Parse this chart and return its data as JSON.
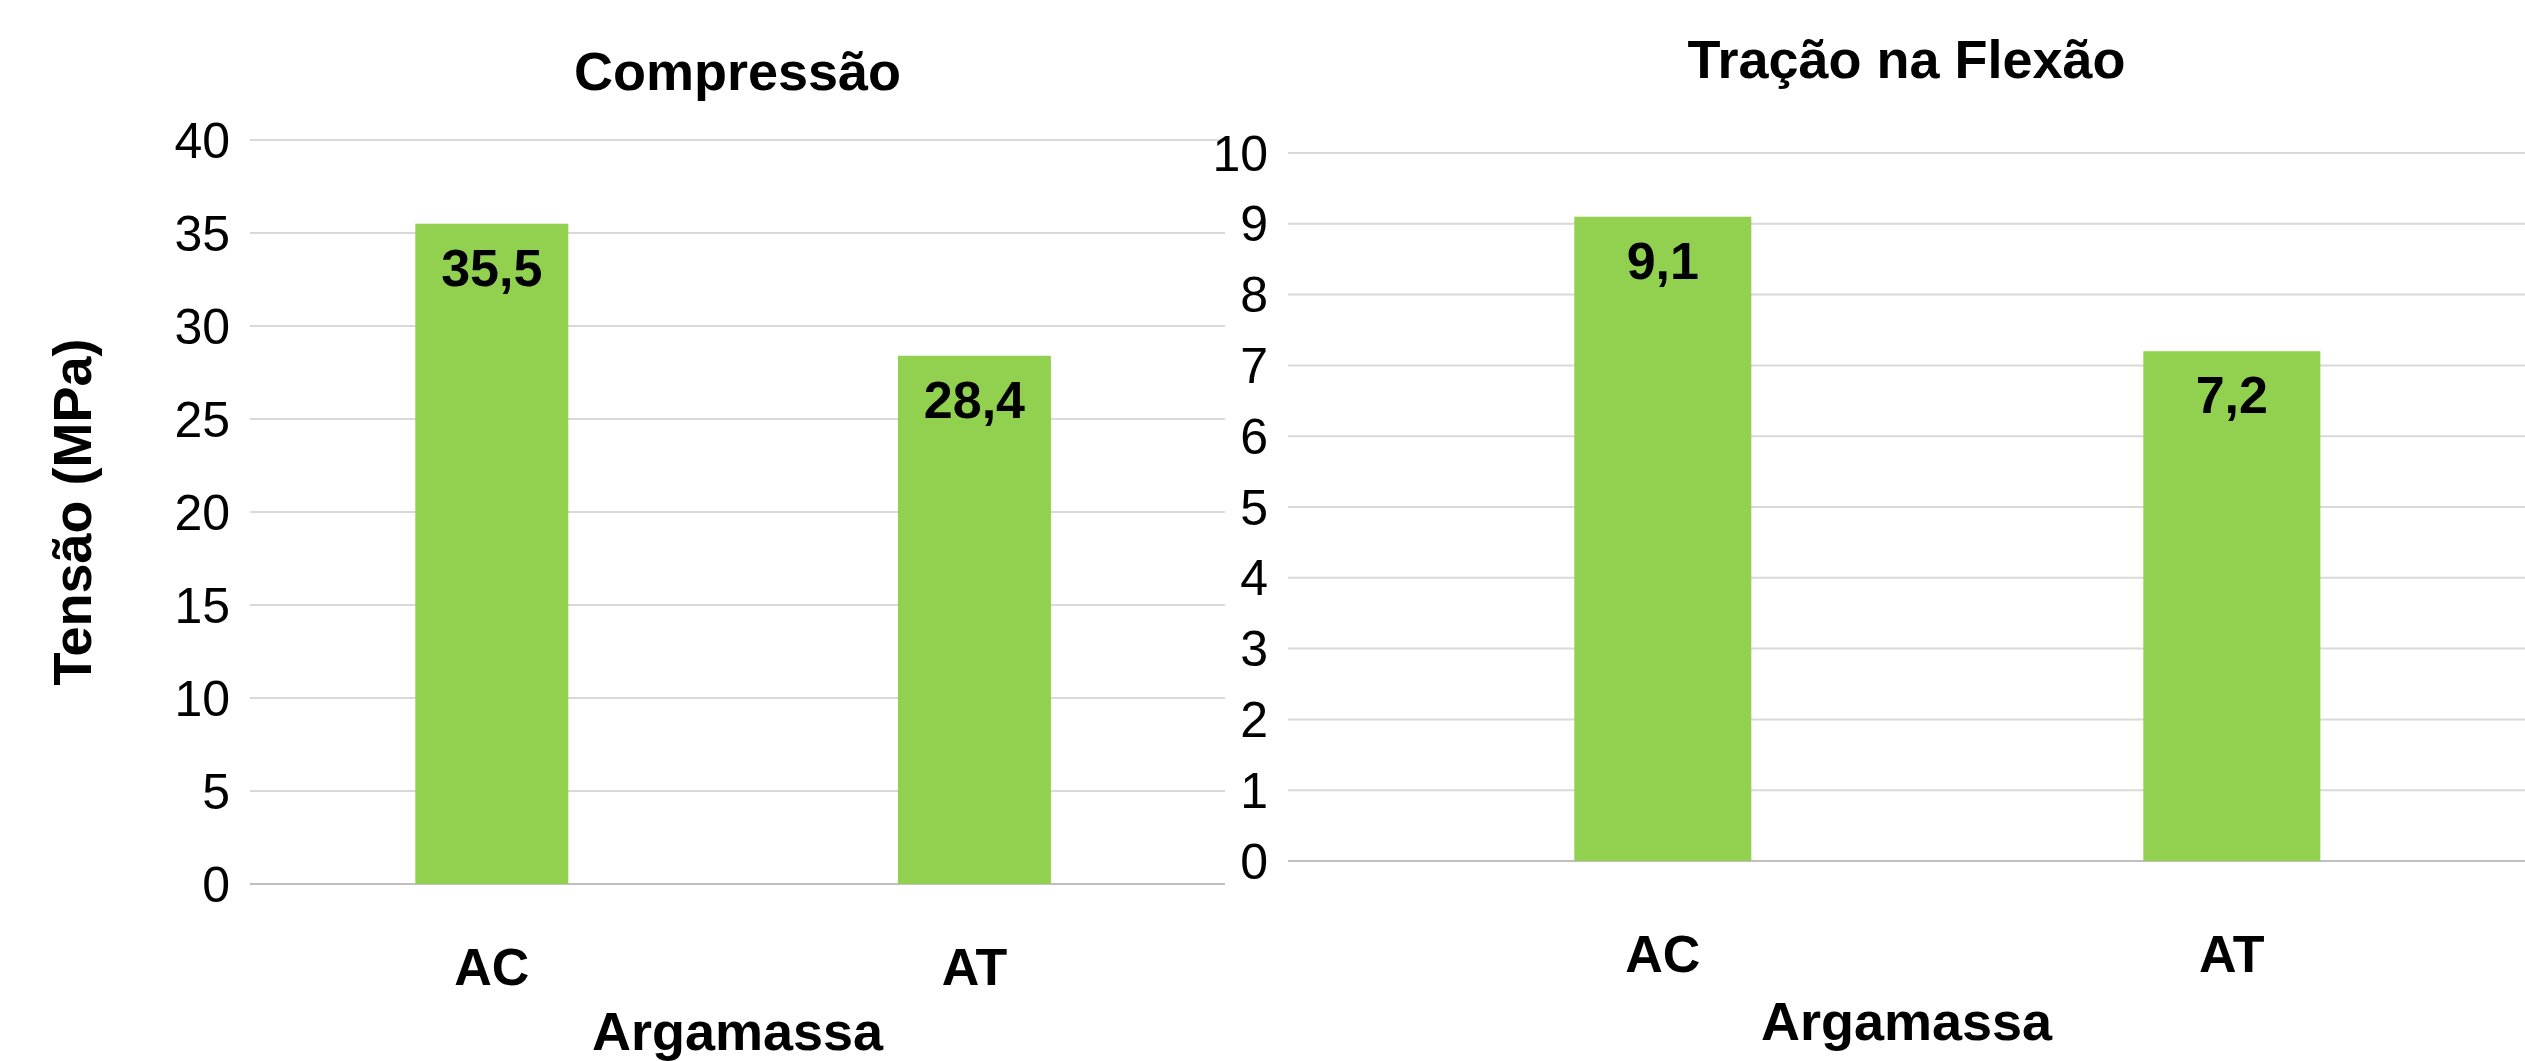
{
  "chart_data": [
    {
      "type": "bar",
      "title": "Compressão",
      "xlabel": "Argamassa",
      "ylabel": "Tensão (MPa)",
      "categories": [
        "AC",
        "AT"
      ],
      "values": [
        35.5,
        28.4
      ],
      "value_labels": [
        "35,5",
        "28,4"
      ],
      "color": "#92d050",
      "ylim": [
        0,
        40
      ],
      "yticks": [
        0,
        5,
        10,
        15,
        20,
        25,
        30,
        35,
        40
      ],
      "grid": "y"
    },
    {
      "type": "bar",
      "title": "Tração na Flexão",
      "xlabel": "Argamassa",
      "categories": [
        "AC",
        "AT"
      ],
      "values": [
        9.1,
        7.2
      ],
      "value_labels": [
        "9,1",
        "7,2"
      ],
      "color": "#92d050",
      "ylim": [
        0,
        10
      ],
      "yticks": [
        0,
        1,
        2,
        3,
        4,
        5,
        6,
        7,
        8,
        9,
        10
      ],
      "grid": "y"
    }
  ]
}
